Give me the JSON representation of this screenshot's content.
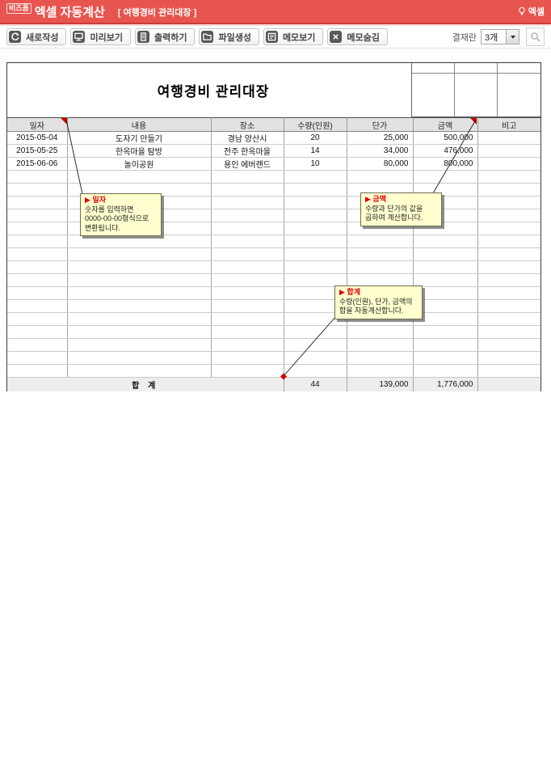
{
  "topbar": {
    "brand_badge": "비즈폼",
    "brand": "엑셀 자동계산",
    "subtitle": "[ 여행경비 관리대장 ]",
    "right_text": "엑셀"
  },
  "toolbar": {
    "buttons": [
      {
        "label": "새로작성",
        "icon": "refresh-icon"
      },
      {
        "label": "미리보기",
        "icon": "monitor-icon"
      },
      {
        "label": "출력하기",
        "icon": "printer-icon"
      },
      {
        "label": "파일생성",
        "icon": "folder-icon"
      },
      {
        "label": "메모보기",
        "icon": "memo-icon"
      },
      {
        "label": "메모숨김",
        "icon": "memo-hide-icon"
      }
    ],
    "approval_label": "결재란",
    "approval_count": "3개"
  },
  "document": {
    "title": "여행경비 관리대장",
    "table": {
      "headers": [
        "일자",
        "내용",
        "장소",
        "수량(인원)",
        "단가",
        "금액",
        "비고"
      ],
      "rows": [
        [
          "2015-05-04",
          "도자기 만들기",
          "경남 양산시",
          "20",
          "25,000",
          "500,000",
          ""
        ],
        [
          "2015-05-25",
          "한옥마을 탐방",
          "전주 한옥마을",
          "14",
          "34,000",
          "476,000",
          ""
        ],
        [
          "2015-06-06",
          "놀이공원",
          "용인 에버랜드",
          "10",
          "80,000",
          "800,000",
          ""
        ]
      ],
      "empty_row_count": 16,
      "total": {
        "label": "합 계",
        "qty": "44",
        "unit_price": "139,000",
        "amount": "1,776,000"
      }
    },
    "memos": [
      {
        "title": "일자",
        "body": "숫자를 입력하면\n0000-00-00형식으로\n변환됩니다."
      },
      {
        "title": "금액",
        "body": "수량과 단가의 값을\n곱하여 계산합니다."
      },
      {
        "title": "합계",
        "body": "수량(인원), 단가, 금액의\n합을 자동계산합니다."
      }
    ]
  },
  "colors": {
    "topbar_red": "#e8554f",
    "memo_bg": "#ffffcf",
    "memo_title_red": "#e00000",
    "marker_red": "#d40000",
    "header_gray": "#e2e2e2"
  }
}
